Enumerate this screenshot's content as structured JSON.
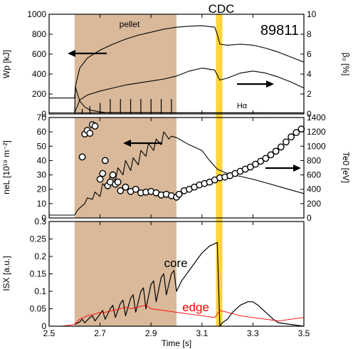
{
  "figure": {
    "top_label": "CDC",
    "shot_number": "89811",
    "xlabel": "Time [s]",
    "xlim": [
      2.5,
      3.5
    ],
    "xticks": [
      "2.5",
      "2.7",
      "2.9",
      "3.1",
      "3.3",
      "3.5"
    ],
    "colors": {
      "pellet_band": "#d9b99a",
      "cdc_band": "#ffd43b",
      "trace": "#000000",
      "edge_trace": "#ff0000",
      "frame": "#000000"
    },
    "pellet_interval": [
      2.6,
      3.0
    ],
    "cdc_interval": [
      3.155,
      3.18
    ]
  },
  "chart_data": [
    {
      "type": "line",
      "panel": "top",
      "ylabel": "Wp [kJ]",
      "ylim": [
        0,
        1000
      ],
      "yticks": [
        "0",
        "200",
        "400",
        "600",
        "800",
        "1000"
      ],
      "y2label": "β₀ [%]",
      "y2lim": [
        0,
        10
      ],
      "y2ticks": [
        "0",
        "2",
        "4",
        "6",
        "8",
        "10"
      ],
      "annotations": [
        "pellet",
        "Hα"
      ],
      "series": [
        {
          "name": "",
          "axis": "left",
          "x": [
            2.5,
            2.6,
            2.605,
            2.62,
            2.65,
            2.7,
            2.75,
            2.8,
            2.85,
            2.9,
            2.95,
            3.0,
            3.05,
            3.1,
            3.15,
            3.16,
            3.17,
            3.2,
            3.25,
            3.3,
            3.35,
            3.4,
            3.45,
            3.5
          ],
          "y": [
            160,
            160,
            300,
            460,
            560,
            640,
            700,
            750,
            790,
            820,
            850,
            870,
            880,
            885,
            870,
            800,
            700,
            690,
            700,
            690,
            660,
            620,
            570,
            520
          ]
        },
        {
          "name": "",
          "axis": "right",
          "x": [
            2.6,
            2.62,
            2.65,
            2.7,
            2.75,
            2.8,
            2.85,
            2.9,
            2.95,
            3.0,
            3.05,
            3.1,
            3.15,
            3.17,
            3.2,
            3.25,
            3.3,
            3.35,
            3.4,
            3.45,
            3.5
          ],
          "y": [
            0.1,
            1.4,
            1.9,
            2.3,
            2.6,
            2.9,
            3.1,
            3.3,
            3.5,
            3.8,
            4.3,
            4.6,
            4.4,
            3.4,
            3.6,
            4.1,
            4.3,
            4.1,
            3.7,
            3.2,
            2.6
          ]
        },
        {
          "name": "",
          "axis": "left",
          "x": [
            2.5,
            2.6,
            2.603,
            2.62,
            2.64,
            2.66,
            2.7,
            2.72,
            3.0,
            3.17,
            3.5
          ],
          "y": [
            0,
            0,
            270,
            130,
            70,
            40,
            20,
            15,
            12,
            12,
            10
          ]
        }
      ],
      "spikes": {
        "name": "Hα",
        "axis": "left",
        "x": [
          2.63,
          2.66,
          2.7,
          2.74,
          2.78,
          2.82,
          2.86,
          2.9,
          2.94,
          2.98
        ],
        "y": [
          50,
          80,
          110,
          150,
          150,
          150,
          150,
          150,
          150,
          150
        ]
      }
    },
    {
      "type": "line",
      "panel": "middle",
      "ylabel": "neL [10¹⁹ m⁻²]",
      "ylim": [
        0,
        70
      ],
      "yticks": [
        "0",
        "10",
        "20",
        "30",
        "40",
        "50",
        "60",
        "70"
      ],
      "y2label": "Te0 [eV]",
      "y2lim": [
        0,
        1400
      ],
      "y2ticks": [
        "0",
        "200",
        "400",
        "600",
        "800",
        "1000",
        "1200",
        "1400"
      ],
      "series": [
        {
          "name": "",
          "axis": "left",
          "x": [
            2.5,
            2.6,
            2.61,
            2.62,
            2.64,
            2.65,
            2.67,
            2.68,
            2.7,
            2.71,
            2.73,
            2.74,
            2.76,
            2.77,
            2.79,
            2.8,
            2.82,
            2.83,
            2.85,
            2.86,
            2.88,
            2.89,
            2.91,
            2.92,
            2.94,
            2.95,
            2.97,
            2.98,
            3.0,
            3.05,
            3.1,
            3.13,
            3.16,
            3.2,
            3.3,
            3.4,
            3.5
          ],
          "y": [
            2,
            2,
            5,
            7,
            10,
            14,
            13,
            18,
            15,
            24,
            20,
            30,
            26,
            35,
            30,
            40,
            33,
            42,
            37,
            47,
            43,
            52,
            47,
            55,
            51,
            60,
            55,
            57,
            56,
            51,
            47,
            40,
            34,
            31,
            27,
            22,
            17
          ]
        },
        {
          "name": "",
          "axis": "right",
          "marker": "circle",
          "x": [
            2.63,
            2.64,
            2.65,
            2.66,
            2.67,
            2.68,
            2.7,
            2.71,
            2.72,
            2.73,
            2.74,
            2.75,
            2.76,
            2.77,
            2.78,
            2.8,
            2.82,
            2.84,
            2.86,
            2.88,
            2.9,
            2.92,
            2.94,
            2.96,
            2.98,
            3.0,
            3.01,
            3.03,
            3.05,
            3.07,
            3.09,
            3.11,
            3.13,
            3.15,
            3.17,
            3.19,
            3.21,
            3.23,
            3.25,
            3.27,
            3.29,
            3.31,
            3.33,
            3.35,
            3.37,
            3.39,
            3.41,
            3.43,
            3.45,
            3.47,
            3.49
          ],
          "y": [
            850,
            1170,
            1220,
            1180,
            1300,
            1280,
            540,
            620,
            800,
            450,
            500,
            600,
            470,
            500,
            380,
            430,
            370,
            400,
            350,
            360,
            370,
            350,
            320,
            330,
            310,
            290,
            330,
            380,
            400,
            430,
            460,
            480,
            500,
            530,
            560,
            570,
            590,
            620,
            650,
            680,
            710,
            750,
            790,
            830,
            880,
            930,
            990,
            1060,
            1130,
            1190,
            1240
          ]
        }
      ]
    },
    {
      "type": "line",
      "panel": "bottom",
      "ylabel": "ISX [a.u.]",
      "ylim": [
        0,
        0.3
      ],
      "yticks": [
        "0",
        "0.05",
        "0.1",
        "0.15",
        "0.2",
        "0.25",
        "0.3"
      ],
      "series": [
        {
          "name": "core",
          "color": "#000000",
          "x": [
            2.6,
            2.62,
            2.63,
            2.64,
            2.66,
            2.67,
            2.68,
            2.7,
            2.71,
            2.72,
            2.74,
            2.75,
            2.76,
            2.78,
            2.79,
            2.8,
            2.82,
            2.83,
            2.84,
            2.86,
            2.87,
            2.88,
            2.9,
            2.91,
            2.92,
            2.94,
            2.95,
            2.96,
            2.98,
            2.99,
            3.0,
            3.02,
            3.05,
            3.08,
            3.1,
            3.13,
            3.16,
            3.17,
            3.18,
            3.2,
            3.22,
            3.25,
            3.28,
            3.3,
            3.32,
            3.35,
            3.38,
            3.4,
            3.45,
            3.5
          ],
          "y": [
            0.005,
            0.012,
            0.02,
            0.01,
            0.025,
            0.03,
            0.015,
            0.035,
            0.045,
            0.02,
            0.05,
            0.06,
            0.025,
            0.065,
            0.075,
            0.03,
            0.08,
            0.09,
            0.04,
            0.1,
            0.11,
            0.05,
            0.12,
            0.13,
            0.07,
            0.14,
            0.15,
            0.09,
            0.15,
            0.16,
            0.1,
            0.13,
            0.16,
            0.19,
            0.21,
            0.23,
            0.24,
            0.0,
            0.01,
            0.02,
            0.04,
            0.06,
            0.07,
            0.07,
            0.06,
            0.04,
            0.02,
            0.01,
            0.005,
            0.0
          ]
        },
        {
          "name": "edge",
          "color": "#ff0000",
          "x": [
            2.5,
            2.55,
            2.6,
            2.62,
            2.65,
            2.68,
            2.7,
            2.72,
            2.75,
            2.78,
            2.8,
            2.82,
            2.85,
            2.88,
            2.9,
            2.95,
            3.0,
            3.05,
            3.1,
            3.15,
            3.17,
            3.2,
            3.25,
            3.3,
            3.35,
            3.4,
            3.45,
            3.5
          ],
          "y": [
            0.0,
            0.0,
            0.005,
            0.02,
            0.03,
            0.035,
            0.04,
            0.04,
            0.045,
            0.05,
            0.055,
            0.05,
            0.055,
            0.06,
            0.05,
            0.045,
            0.04,
            0.035,
            0.03,
            0.025,
            0.045,
            0.04,
            0.03,
            0.025,
            0.02,
            0.015,
            0.02,
            0.025
          ]
        }
      ]
    }
  ]
}
